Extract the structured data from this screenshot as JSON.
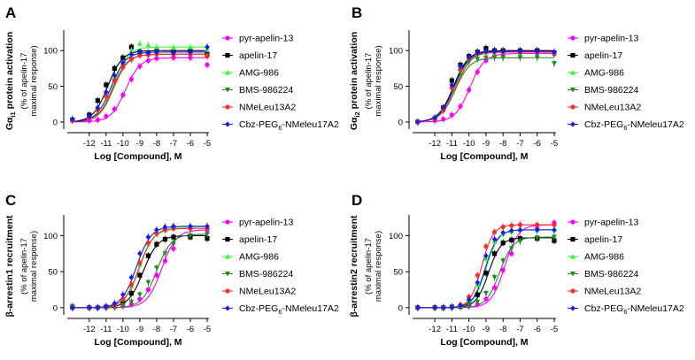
{
  "colors": {
    "pyr-apelin-13": "#ff00ff",
    "apelin-17": "#000000",
    "AMG-986": "#33ff33",
    "BMS-986224": "#228b22",
    "NMeLeu13A2": "#ff2a2a",
    "Cbz-PEG6-NMeleu17A2": "#1a1aee",
    "axis": "#000000"
  },
  "chart_data": [
    {
      "type": "line",
      "panel_label": "A",
      "ylabel_main": "Gα",
      "ylabel_sub": "i1",
      "ylabel_rest": " protein activation",
      "ylabel_line2": "(% of apelin-17",
      "ylabel_line3": "maximal response)",
      "xlabel": "Log [Compound], M",
      "xlim": [
        -13.2,
        -5
      ],
      "ylim": [
        -10,
        125
      ],
      "xticks": [
        "-12",
        "-11",
        "-10",
        "-9",
        "-8",
        "-7",
        "-6",
        "-5"
      ],
      "yticks": [
        "0",
        "50",
        "100"
      ],
      "x": [
        -13,
        -12,
        -11.5,
        -11,
        -10.5,
        -10,
        -9.5,
        -9,
        -8.5,
        -8,
        -7,
        -6,
        -5
      ],
      "series": [
        {
          "name": "pyr-apelin-13",
          "color": "pyr-apelin-13",
          "marker": "circle",
          "logEC50": -9.85,
          "top": 90,
          "hill": 1.0,
          "values": [
            2,
            2,
            3,
            8,
            18,
            38,
            60,
            78,
            86,
            89,
            90,
            90,
            80
          ]
        },
        {
          "name": "apelin-17",
          "color": "apelin-17",
          "marker": "square",
          "logEC50": -10.9,
          "top": 100,
          "hill": 1.0,
          "values": [
            3,
            10,
            30,
            52,
            75,
            90,
            105,
            98,
            96,
            100,
            99,
            100,
            95
          ]
        },
        {
          "name": "AMG-986",
          "color": "AMG-986",
          "marker": "triangle-up",
          "logEC50": -10.55,
          "top": 105,
          "hill": 1.0,
          "values": [
            3,
            8,
            18,
            38,
            60,
            82,
            100,
            110,
            108,
            105,
            104,
            105,
            103
          ]
        },
        {
          "name": "BMS-986224",
          "color": "BMS-986224",
          "marker": "triangle-down",
          "logEC50": -10.6,
          "top": 95,
          "hill": 1.0,
          "values": [
            2,
            6,
            15,
            35,
            58,
            78,
            88,
            95,
            94,
            95,
            94,
            95,
            93
          ]
        },
        {
          "name": "NMeLeu13A2",
          "color": "NMeLeu13A2",
          "marker": "circle",
          "logEC50": -10.55,
          "top": 95,
          "hill": 1.0,
          "values": [
            2,
            6,
            17,
            36,
            58,
            77,
            88,
            93,
            94,
            95,
            94,
            95,
            92
          ]
        },
        {
          "name": "Cbz-PEG6-NMeleu17A2",
          "color": "Cbz-PEG6-NMeleu17A2",
          "marker": "diamond",
          "logEC50": -10.7,
          "top": 98,
          "hill": 1.0,
          "values": [
            4,
            8,
            20,
            42,
            65,
            83,
            95,
            98,
            97,
            98,
            97,
            98,
            105
          ]
        }
      ]
    },
    {
      "type": "line",
      "panel_label": "B",
      "ylabel_main": "Gα",
      "ylabel_sub": "i2",
      "ylabel_rest": " protein activation",
      "ylabel_line2": "(% of apelin-17",
      "ylabel_line3": "maximal response)",
      "xlabel": "Log [Compound], M",
      "xlim": [
        -13.2,
        -5
      ],
      "ylim": [
        -10,
        125
      ],
      "xticks": [
        "-12",
        "-11",
        "-10",
        "-9",
        "-8",
        "-7",
        "-6",
        "-5"
      ],
      "yticks": [
        "0",
        "50",
        "100"
      ],
      "x": [
        -13,
        -12,
        -11.5,
        -11,
        -10.5,
        -10,
        -9.5,
        -9,
        -8.5,
        -8,
        -7,
        -6,
        -5
      ],
      "series": [
        {
          "name": "pyr-apelin-13",
          "color": "pyr-apelin-13",
          "marker": "circle",
          "logEC50": -9.95,
          "top": 96,
          "hill": 1.0,
          "values": [
            0,
            2,
            4,
            10,
            22,
            45,
            70,
            86,
            93,
            95,
            96,
            96,
            95
          ]
        },
        {
          "name": "apelin-17",
          "color": "apelin-17",
          "marker": "square",
          "logEC50": -10.9,
          "top": 100,
          "hill": 1.0,
          "values": [
            0,
            5,
            20,
            58,
            80,
            92,
            98,
            103,
            100,
            100,
            100,
            100,
            97
          ]
        },
        {
          "name": "AMG-986",
          "color": "AMG-986",
          "marker": "triangle-up",
          "logEC50": -10.8,
          "top": 98,
          "hill": 1.0,
          "values": [
            0,
            5,
            18,
            50,
            75,
            90,
            96,
            98,
            97,
            98,
            97,
            98,
            97
          ]
        },
        {
          "name": "BMS-986224",
          "color": "BMS-986224",
          "marker": "triangle-down",
          "logEC50": -10.8,
          "top": 90,
          "hill": 1.0,
          "values": [
            0,
            5,
            17,
            46,
            70,
            84,
            88,
            90,
            90,
            90,
            90,
            90,
            82
          ]
        },
        {
          "name": "NMeLeu13A2",
          "color": "NMeLeu13A2",
          "marker": "circle",
          "logEC50": -10.75,
          "top": 98,
          "hill": 1.0,
          "values": [
            0,
            4,
            16,
            48,
            74,
            89,
            96,
            98,
            98,
            98,
            98,
            98,
            97
          ]
        },
        {
          "name": "Cbz-PEG6-NMeleu17A2",
          "color": "Cbz-PEG6-NMeleu17A2",
          "marker": "diamond",
          "logEC50": -10.85,
          "top": 99,
          "hill": 1.0,
          "values": [
            0,
            6,
            20,
            52,
            78,
            91,
            97,
            99,
            99,
            99,
            99,
            99,
            98
          ]
        }
      ]
    },
    {
      "type": "line",
      "panel_label": "C",
      "ylabel_main": "β-arrestin1 recruitment",
      "ylabel_sub": "",
      "ylabel_rest": "",
      "ylabel_line2": "(% of apelin-17",
      "ylabel_line3": "maximal response)",
      "xlabel": "Log [Compound], M",
      "xlim": [
        -13.2,
        -5
      ],
      "ylim": [
        -10,
        125
      ],
      "xticks": [
        "-12",
        "-11",
        "-10",
        "-9",
        "-8",
        "-7",
        "-6",
        "-5"
      ],
      "yticks": [
        "0",
        "50",
        "100"
      ],
      "x": [
        -13,
        -12,
        -11.5,
        -11,
        -10.5,
        -10,
        -9.5,
        -9,
        -8.5,
        -8,
        -7.5,
        -7,
        -6,
        -5
      ],
      "series": [
        {
          "name": "pyr-apelin-13",
          "color": "pyr-apelin-13",
          "marker": "circle",
          "logEC50": -7.7,
          "top": 108,
          "hill": 1.0,
          "values": [
            0,
            0,
            0,
            0,
            1,
            2,
            5,
            12,
            25,
            45,
            65,
            82,
            100,
            108
          ]
        },
        {
          "name": "apelin-17",
          "color": "apelin-17",
          "marker": "square",
          "logEC50": -8.8,
          "top": 100,
          "hill": 1.0,
          "values": [
            0,
            0,
            0,
            1,
            3,
            8,
            20,
            45,
            72,
            88,
            95,
            98,
            98,
            96
          ]
        },
        {
          "name": "AMG-986",
          "color": "AMG-986",
          "marker": "triangle-up",
          "logEC50": -9.0,
          "top": 112,
          "hill": 1.0,
          "values": [
            0,
            0,
            0,
            1,
            4,
            12,
            30,
            60,
            88,
            102,
            108,
            111,
            112,
            112
          ]
        },
        {
          "name": "BMS-986224",
          "color": "BMS-986224",
          "marker": "triangle-down",
          "logEC50": -8.0,
          "top": 102,
          "hill": 1.0,
          "values": [
            2,
            0,
            0,
            0,
            1,
            3,
            8,
            18,
            35,
            55,
            75,
            88,
            100,
            102
          ]
        },
        {
          "name": "NMeLeu13A2",
          "color": "NMeLeu13A2",
          "marker": "circle",
          "logEC50": -9.05,
          "top": 110,
          "hill": 1.0,
          "values": [
            0,
            0,
            0,
            1,
            4,
            12,
            32,
            62,
            90,
            103,
            108,
            110,
            110,
            110
          ]
        },
        {
          "name": "Cbz-PEG6-NMeleu17A2",
          "color": "Cbz-PEG6-NMeleu17A2",
          "marker": "diamond",
          "logEC50": -9.2,
          "top": 113,
          "hill": 1.0,
          "values": [
            0,
            0,
            0,
            2,
            6,
            18,
            42,
            75,
            98,
            108,
            112,
            113,
            113,
            113
          ]
        }
      ]
    },
    {
      "type": "line",
      "panel_label": "D",
      "ylabel_main": "β-arrestin2 recruitment",
      "ylabel_sub": "",
      "ylabel_rest": "",
      "ylabel_line2": "(% of apelin-17",
      "ylabel_line3": "maximal response)",
      "xlabel": "Log [Compound], M",
      "xlim": [
        -13.2,
        -5
      ],
      "ylim": [
        -10,
        125
      ],
      "xticks": [
        "-12",
        "-11",
        "-10",
        "-9",
        "-8",
        "-7",
        "-6",
        "-5"
      ],
      "yticks": [
        "0",
        "50",
        "100"
      ],
      "x": [
        -13,
        -12,
        -11.5,
        -11,
        -10.5,
        -10,
        -9.5,
        -9,
        -8.5,
        -8,
        -7.5,
        -7,
        -6,
        -5
      ],
      "series": [
        {
          "name": "pyr-apelin-13",
          "color": "pyr-apelin-13",
          "marker": "circle",
          "logEC50": -7.9,
          "top": 115,
          "hill": 1.1,
          "values": [
            0,
            0,
            0,
            0,
            1,
            2,
            5,
            12,
            28,
            52,
            75,
            95,
            110,
            118
          ]
        },
        {
          "name": "apelin-17",
          "color": "apelin-17",
          "marker": "square",
          "logEC50": -8.85,
          "top": 97,
          "hill": 1.2,
          "values": [
            0,
            0,
            0,
            1,
            2,
            6,
            18,
            48,
            75,
            90,
            94,
            96,
            96,
            93
          ]
        },
        {
          "name": "AMG-986",
          "color": "AMG-986",
          "marker": "triangle-up",
          "logEC50": -9.0,
          "top": 108,
          "hill": 1.2,
          "values": [
            0,
            0,
            0,
            1,
            3,
            10,
            32,
            68,
            92,
            103,
            106,
            108,
            108,
            108
          ]
        },
        {
          "name": "BMS-986224",
          "color": "BMS-986224",
          "marker": "triangle-down",
          "logEC50": -8.2,
          "top": 98,
          "hill": 1.1,
          "values": [
            0,
            0,
            0,
            0,
            1,
            3,
            8,
            20,
            42,
            65,
            82,
            92,
            97,
            98
          ]
        },
        {
          "name": "NMeLeu13A2",
          "color": "NMeLeu13A2",
          "marker": "circle",
          "logEC50": -9.25,
          "top": 115,
          "hill": 1.3,
          "values": [
            0,
            0,
            0,
            1,
            4,
            15,
            45,
            85,
            105,
            112,
            114,
            115,
            115,
            115
          ]
        },
        {
          "name": "Cbz-PEG6-NMeleu17A2",
          "color": "Cbz-PEG6-NMeleu17A2",
          "marker": "diamond",
          "logEC50": -9.05,
          "top": 108,
          "hill": 1.2,
          "values": [
            0,
            0,
            0,
            1,
            3,
            11,
            35,
            72,
            95,
            104,
            107,
            108,
            108,
            108
          ]
        }
      ]
    }
  ],
  "legend": {
    "items": [
      {
        "label": "pyr-apelin-13",
        "color": "pyr-apelin-13",
        "marker": "circle"
      },
      {
        "label": "apelin-17",
        "color": "apelin-17",
        "marker": "square"
      },
      {
        "label": "AMG-986",
        "color": "AMG-986",
        "marker": "triangle-up"
      },
      {
        "label": "BMS-986224",
        "color": "BMS-986224",
        "marker": "triangle-down"
      },
      {
        "label": "NMeLeu13A2",
        "color": "NMeLeu13A2",
        "marker": "circle"
      },
      {
        "label_main": "Cbz-PEG",
        "label_sub": "6",
        "label_rest": "-NMeleu17A2",
        "color": "Cbz-PEG6-NMeleu17A2",
        "marker": "diamond"
      }
    ]
  }
}
